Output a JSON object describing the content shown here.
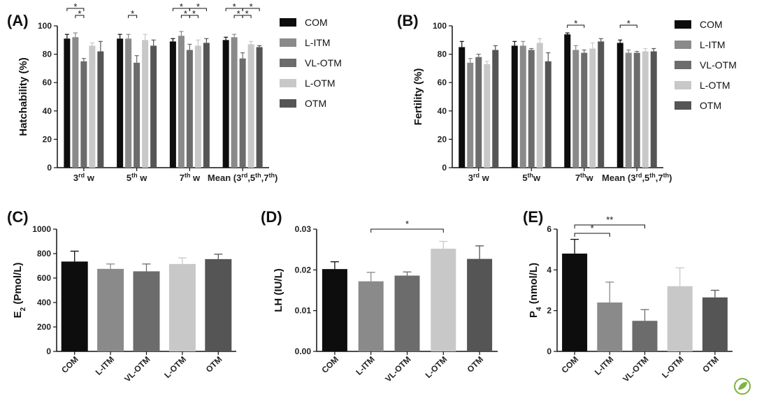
{
  "legend": [
    {
      "name": "COM",
      "color": "#0d0d0d"
    },
    {
      "name": "L-ITM",
      "color": "#8a8a8a"
    },
    {
      "name": "VL-OTM",
      "color": "#6c6c6c"
    },
    {
      "name": "L-OTM",
      "color": "#c8c8c8"
    },
    {
      "name": "OTM",
      "color": "#555555"
    }
  ],
  "chart_data": [
    {
      "panel": "(A)",
      "type": "bar",
      "ylabel": "Hatchability (%)",
      "ylim": [
        0,
        100
      ],
      "yticks": [
        "0",
        "20",
        "40",
        "60",
        "80",
        "100"
      ],
      "categories": [
        {
          "main": "3",
          "sup": "rd",
          "rest": " w"
        },
        {
          "main": "5",
          "sup": "th",
          "rest": " w"
        },
        {
          "main": "7",
          "sup": "th",
          "rest": " w"
        },
        {
          "main": "Mean (3",
          "sup": "rd",
          "rest": ",5",
          "sup2": "th",
          "rest2": ",7",
          "sup3": "th",
          "rest3": ")"
        }
      ],
      "series": [
        {
          "name": "COM",
          "values": [
            91,
            91,
            89,
            90
          ],
          "errors": [
            3,
            3,
            2,
            2
          ]
        },
        {
          "name": "L-ITM",
          "values": [
            92,
            91,
            93,
            92
          ],
          "errors": [
            3,
            3,
            3,
            2
          ]
        },
        {
          "name": "VL-OTM",
          "values": [
            75,
            74,
            83,
            77
          ],
          "errors": [
            2,
            5,
            4,
            4
          ]
        },
        {
          "name": "L-OTM",
          "values": [
            86,
            90,
            86,
            87
          ],
          "errors": [
            2,
            4,
            4,
            2
          ]
        },
        {
          "name": "OTM",
          "values": [
            82,
            86,
            88,
            85
          ],
          "errors": [
            7,
            4,
            3,
            1
          ]
        }
      ],
      "significance": [
        {
          "group": 0,
          "from": 0,
          "to": 2,
          "label": "*",
          "level": 1
        },
        {
          "group": 0,
          "from": 1,
          "to": 2,
          "label": "*",
          "level": 0
        },
        {
          "group": 1,
          "from": 1,
          "to": 2,
          "label": "*",
          "level": 0
        },
        {
          "group": 2,
          "from": 0,
          "to": 2,
          "label": "*",
          "level": 1
        },
        {
          "group": 2,
          "from": 1,
          "to": 2,
          "label": "*",
          "level": 0
        },
        {
          "group": 2,
          "from": 2,
          "to": 3,
          "label": "*",
          "level": 0
        },
        {
          "group": 2,
          "from": 2,
          "to": 4,
          "label": "*",
          "level": 1
        },
        {
          "group": 3,
          "from": 0,
          "to": 2,
          "label": "*",
          "level": 1
        },
        {
          "group": 3,
          "from": 1,
          "to": 2,
          "label": "*",
          "level": 0
        },
        {
          "group": 3,
          "from": 2,
          "to": 3,
          "label": "*",
          "level": 0
        },
        {
          "group": 3,
          "from": 2,
          "to": 4,
          "label": "*",
          "level": 1
        }
      ]
    },
    {
      "panel": "(B)",
      "type": "bar",
      "ylabel": "Fertility (%)",
      "ylim": [
        0,
        100
      ],
      "yticks": [
        "0",
        "20",
        "40",
        "60",
        "80",
        "100"
      ],
      "categories": [
        {
          "main": "3",
          "sup": "rd",
          "rest": " w"
        },
        {
          "main": "5",
          "sup": "th",
          "rest": "w"
        },
        {
          "main": "7",
          "sup": "th",
          "rest": "w"
        },
        {
          "main": "Mean (3",
          "sup": "rd",
          "rest": ",5",
          "sup2": "th",
          "rest2": ",7",
          "sup3": "th",
          "rest3": ")"
        }
      ],
      "series": [
        {
          "name": "COM",
          "values": [
            85,
            86,
            94,
            88
          ],
          "errors": [
            4,
            3,
            1,
            2
          ]
        },
        {
          "name": "L-ITM",
          "values": [
            74,
            86,
            83,
            81
          ],
          "errors": [
            3,
            3,
            3,
            2
          ]
        },
        {
          "name": "VL-OTM",
          "values": [
            78,
            83,
            81,
            81
          ],
          "errors": [
            2,
            1,
            2,
            1
          ]
        },
        {
          "name": "L-OTM",
          "values": [
            73,
            88,
            84,
            82
          ],
          "errors": [
            2,
            3,
            4,
            2
          ]
        },
        {
          "name": "OTM",
          "values": [
            83,
            75,
            89,
            82
          ],
          "errors": [
            3,
            6,
            2,
            2
          ]
        }
      ],
      "significance": [
        {
          "group": 2,
          "from": 0,
          "to": 2,
          "label": "*",
          "level": 0
        },
        {
          "group": 3,
          "from": 0,
          "to": 2,
          "label": "*",
          "level": 0
        }
      ]
    },
    {
      "panel": "(C)",
      "type": "bar",
      "ylabel_main": "E",
      "ylabel_sub": "2",
      "ylabel_rest": " (Pmol/L)",
      "ylim": [
        0,
        1000
      ],
      "yticks": [
        "0",
        "200",
        "400",
        "600",
        "800",
        "1000"
      ],
      "categories": [
        "COM",
        "L-ITM",
        "VL-OTM",
        "L-OTM",
        "OTM"
      ],
      "values": [
        735,
        675,
        655,
        715,
        755
      ],
      "errors": [
        85,
        40,
        60,
        50,
        40
      ],
      "significance": []
    },
    {
      "panel": "(D)",
      "type": "bar",
      "ylabel": "LH (IU/L)",
      "ylim": [
        0,
        0.03
      ],
      "yticks": [
        "0.00",
        "0.01",
        "0.02",
        "0.03"
      ],
      "categories": [
        "COM",
        "L-ITM",
        "VL-OTM",
        "L-OTM",
        "OTM"
      ],
      "values": [
        0.0202,
        0.0172,
        0.0186,
        0.0252,
        0.0227
      ],
      "errors": [
        0.0018,
        0.0022,
        0.0009,
        0.0018,
        0.0032
      ],
      "significance": [
        {
          "from": 1,
          "to": 3,
          "label": "*",
          "level": 0
        }
      ]
    },
    {
      "panel": "(E)",
      "type": "bar",
      "ylabel_main": "P",
      "ylabel_sub": "4",
      "ylabel_rest": " (nmol/L)",
      "ylim": [
        0,
        6
      ],
      "yticks": [
        "0",
        "2",
        "4",
        "6"
      ],
      "categories": [
        "COM",
        "L-ITM",
        "VL-OTM",
        "L-OTM",
        "OTM"
      ],
      "values": [
        4.8,
        2.4,
        1.5,
        3.2,
        2.65
      ],
      "errors": [
        0.7,
        1.0,
        0.55,
        0.9,
        0.35
      ],
      "significance": [
        {
          "from": 0,
          "to": 1,
          "label": "*",
          "level": 0
        },
        {
          "from": 0,
          "to": 2,
          "label": "**",
          "level": 1
        }
      ]
    }
  ]
}
